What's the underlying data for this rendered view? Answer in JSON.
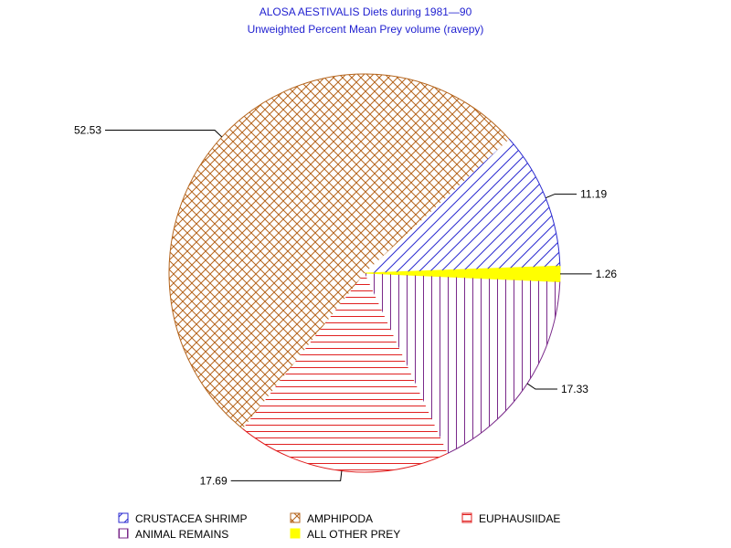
{
  "chart_data": {
    "type": "pie",
    "title": "ALOSA AESTIVALIS Diets during 1981—90",
    "subtitle": "Unweighted Percent Mean Prey volume (ravepy)",
    "slices": [
      {
        "label": "CRUSTACEA SHRIMP",
        "value": 11.19,
        "value_label": "11.19",
        "color": "#2a2ad0",
        "pattern": "diagonal-up"
      },
      {
        "label": "AMPHIPODA",
        "value": 52.53,
        "value_label": "52.53",
        "color": "#b5651d",
        "pattern": "crosshatch"
      },
      {
        "label": "EUPHAUSIIDAE",
        "value": 17.69,
        "value_label": "17.69",
        "color": "#e02020",
        "pattern": "horizontal"
      },
      {
        "label": "ANIMAL REMAINS",
        "value": 17.33,
        "value_label": "17.33",
        "color": "#7a2a8a",
        "pattern": "vertical"
      },
      {
        "label": "ALL OTHER PREY",
        "value": 1.26,
        "value_label": "1.26",
        "color": "#ffff00",
        "pattern": "solid"
      }
    ],
    "legend_placement": "bottom"
  }
}
